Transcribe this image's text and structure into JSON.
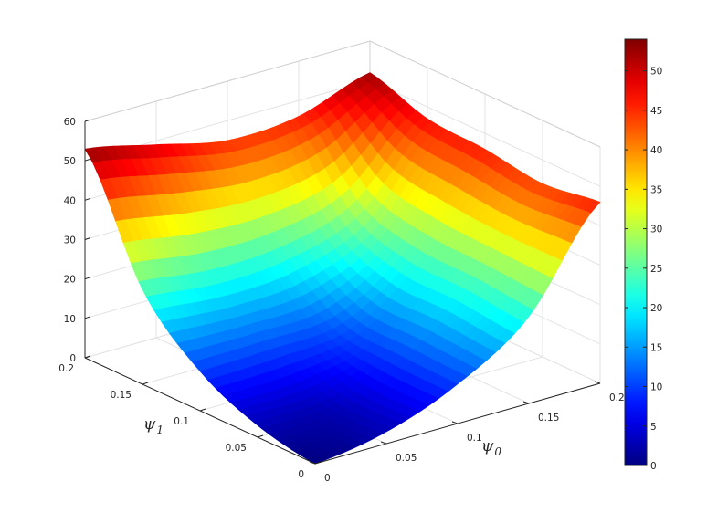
{
  "chart_data": {
    "type": "surface",
    "title": "",
    "x_axis": {
      "symbol": "ψ",
      "subscript": "0",
      "range": [
        0,
        0.2
      ],
      "ticks": [
        0,
        0.05,
        0.1,
        0.15,
        0.2
      ],
      "tick_labels": [
        "0",
        "0.05",
        "0.1",
        "0.15",
        "0.2"
      ]
    },
    "y_axis": {
      "symbol": "ψ",
      "subscript": "1",
      "range": [
        0,
        0.2
      ],
      "ticks": [
        0,
        0.05,
        0.1,
        0.15,
        0.2
      ],
      "tick_labels": [
        "0",
        "0.05",
        "0.1",
        "0.15",
        "0.2"
      ]
    },
    "z_axis": {
      "label": "",
      "range": [
        0,
        60
      ],
      "ticks": [
        0,
        10,
        20,
        30,
        40,
        50,
        60
      ],
      "tick_labels": [
        "0",
        "10",
        "20",
        "30",
        "40",
        "50",
        "60"
      ]
    },
    "grid": true,
    "colormap": "jet",
    "colorbar": {
      "placement": "right",
      "range": [
        0,
        54
      ],
      "ticks": [
        0,
        5,
        10,
        15,
        20,
        25,
        30,
        35,
        40,
        45,
        50
      ],
      "tick_labels": [
        "0",
        "5",
        "10",
        "15",
        "20",
        "25",
        "30",
        "35",
        "40",
        "45",
        "50"
      ]
    },
    "surface": {
      "x": [
        0,
        0.05,
        0.1,
        0.15,
        0.2
      ],
      "y": [
        0,
        0.05,
        0.1,
        0.15,
        0.2
      ],
      "z_rows_by_y": [
        [
          0.0,
          3.0,
          10.0,
          22.0,
          46.0
        ],
        [
          3.0,
          3.5,
          10.5,
          23.5,
          44.0
        ],
        [
          10.0,
          10.5,
          12.0,
          24.0,
          46.0
        ],
        [
          24.0,
          22.0,
          23.0,
          29.0,
          47.0
        ],
        [
          53.0,
          49.0,
          45.0,
          46.0,
          52.0
        ]
      ]
    }
  }
}
